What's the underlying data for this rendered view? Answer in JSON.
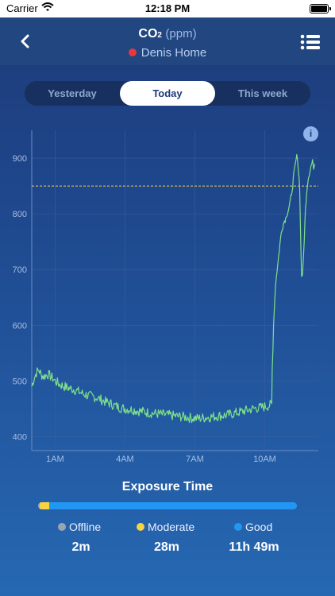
{
  "status_bar": {
    "carrier": "Carrier",
    "time": "12:18 PM"
  },
  "nav": {
    "title": "CO",
    "title_sub": "2",
    "title_unit": "(ppm)",
    "subtitle": "Denis Home",
    "status_dot_color": "#e8383d"
  },
  "tabs": [
    {
      "label": "Yesterday",
      "active": false
    },
    {
      "label": "Today",
      "active": true
    },
    {
      "label": "This week",
      "active": false
    }
  ],
  "info_label": "i",
  "chart_data": {
    "type": "line",
    "x_unit": "hour of day",
    "xlim": [
      0,
      12.3
    ],
    "ylim": [
      375,
      950
    ],
    "x_ticks": [
      1,
      4,
      7,
      10
    ],
    "x_tick_labels": [
      "1AM",
      "4AM",
      "7AM",
      "10AM"
    ],
    "y_ticks": [
      400,
      500,
      600,
      700,
      800,
      900
    ],
    "y_tick_labels": [
      "400",
      "500",
      "600",
      "700",
      "800",
      "900"
    ],
    "threshold": 850,
    "grid": true,
    "line_color": "#7ee08a",
    "threshold_color": "#f2c94c",
    "series": [
      {
        "points": [
          [
            0.0,
            490
          ],
          [
            0.1,
            505
          ],
          [
            0.2,
            515
          ],
          [
            0.3,
            520
          ],
          [
            0.4,
            512
          ],
          [
            0.5,
            508
          ],
          [
            0.7,
            512
          ],
          [
            0.9,
            505
          ],
          [
            1.0,
            500
          ],
          [
            1.2,
            494
          ],
          [
            1.4,
            490
          ],
          [
            1.6,
            487
          ],
          [
            1.8,
            485
          ],
          [
            2.0,
            481
          ],
          [
            2.2,
            477
          ],
          [
            2.4,
            474
          ],
          [
            2.6,
            472
          ],
          [
            2.8,
            470
          ],
          [
            3.0,
            466
          ],
          [
            3.2,
            462
          ],
          [
            3.4,
            459
          ],
          [
            3.6,
            455
          ],
          [
            3.8,
            452
          ],
          [
            4.0,
            450
          ],
          [
            4.2,
            449
          ],
          [
            4.4,
            448
          ],
          [
            4.6,
            446
          ],
          [
            4.8,
            445
          ],
          [
            5.0,
            443
          ],
          [
            5.2,
            442
          ],
          [
            5.4,
            441
          ],
          [
            5.6,
            440
          ],
          [
            5.8,
            439
          ],
          [
            6.0,
            438
          ],
          [
            6.2,
            437
          ],
          [
            6.4,
            436
          ],
          [
            6.6,
            435
          ],
          [
            6.8,
            434
          ],
          [
            7.0,
            433
          ],
          [
            7.2,
            433
          ],
          [
            7.4,
            434
          ],
          [
            7.6,
            435
          ],
          [
            7.8,
            436
          ],
          [
            8.0,
            437
          ],
          [
            8.2,
            438
          ],
          [
            8.4,
            439
          ],
          [
            8.6,
            441
          ],
          [
            8.8,
            443
          ],
          [
            9.0,
            445
          ],
          [
            9.2,
            447
          ],
          [
            9.4,
            449
          ],
          [
            9.6,
            451
          ],
          [
            9.8,
            452
          ],
          [
            10.0,
            454
          ],
          [
            10.1,
            455
          ],
          [
            10.2,
            456
          ],
          [
            10.3,
            458
          ],
          [
            10.32,
            520
          ],
          [
            10.35,
            560
          ],
          [
            10.38,
            600
          ],
          [
            10.42,
            640
          ],
          [
            10.46,
            670
          ],
          [
            10.5,
            690
          ],
          [
            10.55,
            705
          ],
          [
            10.6,
            725
          ],
          [
            10.65,
            745
          ],
          [
            10.7,
            762
          ],
          [
            10.75,
            775
          ],
          [
            10.8,
            782
          ],
          [
            10.85,
            788
          ],
          [
            10.9,
            792
          ],
          [
            10.95,
            800
          ],
          [
            11.0,
            806
          ],
          [
            11.05,
            812
          ],
          [
            11.1,
            822
          ],
          [
            11.15,
            838
          ],
          [
            11.2,
            852
          ],
          [
            11.25,
            870
          ],
          [
            11.3,
            885
          ],
          [
            11.35,
            898
          ],
          [
            11.4,
            905
          ],
          [
            11.45,
            875
          ],
          [
            11.5,
            850
          ],
          [
            11.52,
            800
          ],
          [
            11.55,
            740
          ],
          [
            11.58,
            690
          ],
          [
            11.62,
            685
          ],
          [
            11.66,
            720
          ],
          [
            11.7,
            760
          ],
          [
            11.75,
            810
          ],
          [
            11.8,
            840
          ],
          [
            11.85,
            860
          ],
          [
            11.9,
            872
          ],
          [
            11.95,
            880
          ],
          [
            12.0,
            888
          ],
          [
            12.05,
            892
          ],
          [
            12.1,
            885
          ],
          [
            12.15,
            890
          ]
        ]
      }
    ]
  },
  "exposure": {
    "title": "Exposure Time",
    "items": [
      {
        "label": "Offline",
        "value": "2m",
        "color": "#9aa5b4",
        "fraction": 0.003
      },
      {
        "label": "Moderate",
        "value": "28m",
        "color": "#f6d343",
        "fraction": 0.038
      },
      {
        "label": "Good",
        "value": "11h 49m",
        "color": "#2196f3",
        "fraction": 0.959
      }
    ]
  }
}
